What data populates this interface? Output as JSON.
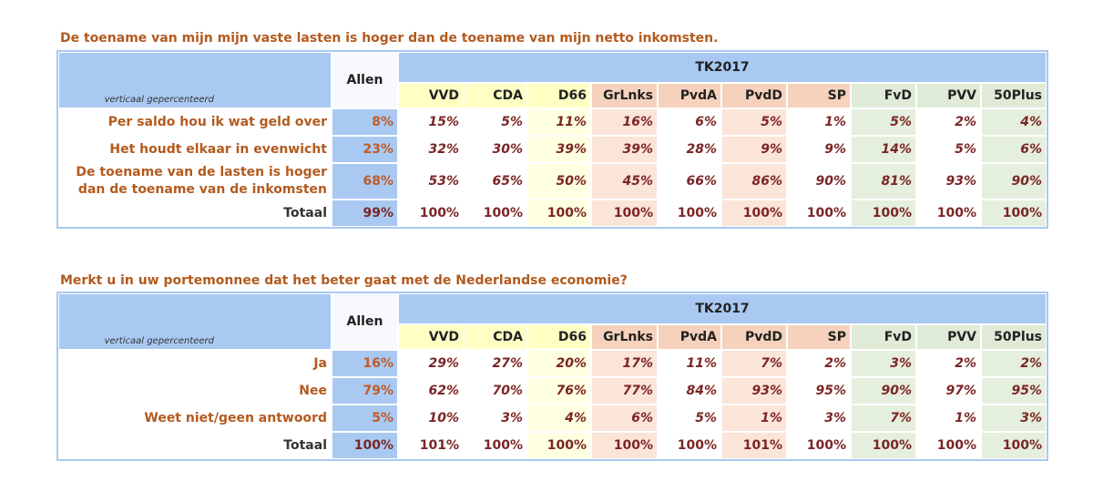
{
  "tables": [
    {
      "title": "De toename van mijn mijn vaste lasten is hoger dan de toename van mijn netto inkomsten.",
      "group_header": "TK2017",
      "allen_header": "Allen",
      "note": "verticaal gepercenteerd",
      "columns": [
        "VVD",
        "CDA",
        "D66",
        "GrLnks",
        "PvdA",
        "PvdD",
        "SP",
        "FvD",
        "PVV",
        "50Plus"
      ],
      "rows": [
        {
          "label": "Per saldo hou ik wat geld over",
          "allen": "8%",
          "values": [
            "15%",
            "5%",
            "11%",
            "16%",
            "6%",
            "5%",
            "1%",
            "5%",
            "2%",
            "4%"
          ]
        },
        {
          "label": "Het houdt elkaar in evenwicht",
          "allen": "23%",
          "values": [
            "32%",
            "30%",
            "39%",
            "39%",
            "28%",
            "9%",
            "9%",
            "14%",
            "5%",
            "6%"
          ]
        },
        {
          "label": "De toename van de lasten is hoger dan de toename van de inkomsten",
          "allen": "68%",
          "values": [
            "53%",
            "65%",
            "50%",
            "45%",
            "66%",
            "86%",
            "90%",
            "81%",
            "93%",
            "90%"
          ]
        }
      ],
      "total": {
        "label": "Totaal",
        "allen": "99%",
        "values": [
          "100%",
          "100%",
          "100%",
          "100%",
          "100%",
          "100%",
          "100%",
          "100%",
          "100%",
          "100%"
        ]
      }
    },
    {
      "title": "Merkt u in uw portemonnee dat het beter gaat met de Nederlandse economie?",
      "group_header": "TK2017",
      "allen_header": "Allen",
      "note": "verticaal gepercenteerd",
      "columns": [
        "VVD",
        "CDA",
        "D66",
        "GrLnks",
        "PvdA",
        "PvdD",
        "SP",
        "FvD",
        "PVV",
        "50Plus"
      ],
      "rows": [
        {
          "label": "Ja",
          "allen": "16%",
          "values": [
            "29%",
            "27%",
            "20%",
            "17%",
            "11%",
            "7%",
            "2%",
            "3%",
            "2%",
            "2%"
          ]
        },
        {
          "label": "Nee",
          "allen": "79%",
          "values": [
            "62%",
            "70%",
            "76%",
            "77%",
            "84%",
            "93%",
            "95%",
            "90%",
            "97%",
            "95%"
          ]
        },
        {
          "label": "Weet niet/geen antwoord",
          "allen": "5%",
          "values": [
            "10%",
            "3%",
            "4%",
            "6%",
            "5%",
            "1%",
            "3%",
            "7%",
            "1%",
            "3%"
          ]
        }
      ],
      "total": {
        "label": "Totaal",
        "allen": "100%",
        "values": [
          "101%",
          "100%",
          "100%",
          "100%",
          "100%",
          "101%",
          "100%",
          "100%",
          "100%",
          "100%"
        ]
      }
    }
  ]
}
